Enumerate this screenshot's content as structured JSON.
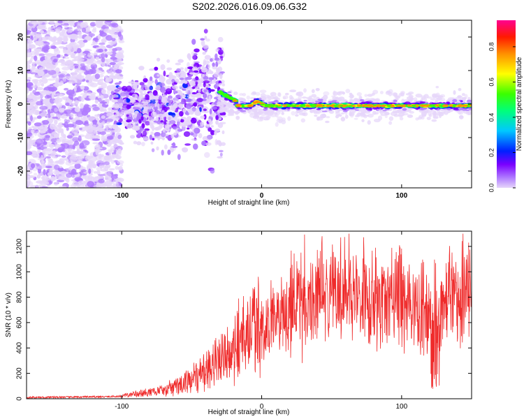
{
  "figure_title": "S202.2026.016.09.06.G32",
  "chart_data": [
    {
      "type": "heatmap",
      "title": "S202.2026.016.09.06.G32",
      "xlabel": "Height of straight line (km)",
      "ylabel": "Frequency (Hz)",
      "xlim": [
        -168,
        150
      ],
      "ylim": [
        -25,
        25
      ],
      "x_ticks": [
        -100,
        0,
        100
      ],
      "y_ticks": [
        -20,
        -10,
        0,
        10,
        20
      ],
      "colorbar": {
        "label": "Normalized spectral amplitude",
        "range": [
          0.0,
          0.95
        ],
        "ticks": [
          0.0,
          0.2,
          0.4,
          0.6,
          0.8
        ],
        "colormap": [
          "#e6d6fa",
          "#7a00ff",
          "#0040ff",
          "#00e5ff",
          "#00ff3a",
          "#ffff00",
          "#ff8a00",
          "#ff0000",
          "#ff007a"
        ]
      },
      "description_of_features": {
        "noise_region_km": [
          -168,
          -105
        ],
        "transition_region_km": [
          -105,
          -30
        ],
        "signal_ridge_freq_hz": -0.5,
        "signal_ridge_start_km": -30
      }
    },
    {
      "type": "line",
      "title": "",
      "xlabel": "Height of straight line (km)",
      "ylabel": "SNR (10 * v/v)",
      "xlim": [
        -168,
        150
      ],
      "ylim": [
        0,
        1320
      ],
      "x_ticks": [
        -100,
        0,
        100
      ],
      "y_ticks": [
        0,
        200,
        400,
        600,
        800,
        1000,
        1200
      ],
      "series": [
        {
          "name": "SNR",
          "color": "#ef2b2b",
          "x": [
            -168,
            -150,
            -130,
            -110,
            -100,
            -90,
            -80,
            -70,
            -60,
            -50,
            -40,
            -30,
            -20,
            -10,
            0,
            10,
            20,
            30,
            40,
            50,
            60,
            70,
            80,
            90,
            100,
            110,
            118,
            122,
            126,
            130,
            140,
            150
          ],
          "values": [
            10,
            12,
            14,
            16,
            20,
            40,
            50,
            70,
            100,
            150,
            220,
            310,
            420,
            500,
            560,
            620,
            700,
            760,
            800,
            800,
            790,
            780,
            770,
            760,
            760,
            740,
            640,
            600,
            680,
            780,
            800,
            810
          ]
        }
      ]
    }
  ]
}
